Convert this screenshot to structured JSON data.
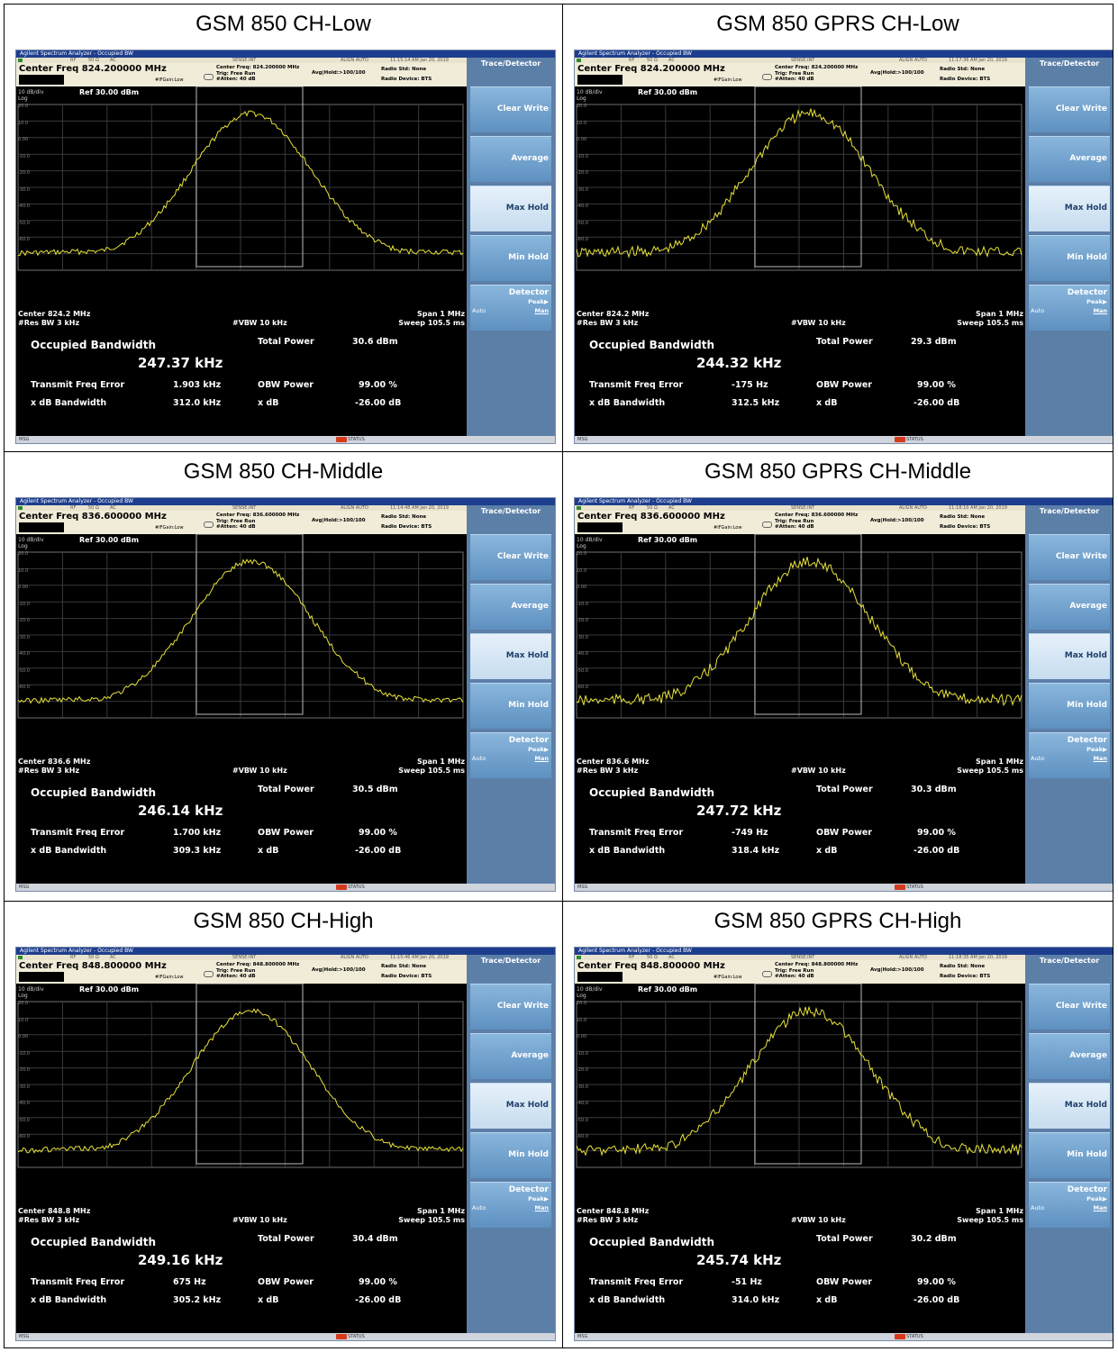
{
  "common": {
    "window_title": "Agilent Spectrum Analyzer - Occupied BW",
    "status_rf": "RF",
    "status_ohm": "50 Ω",
    "status_ac": "AC",
    "status_sense": "SENSE:INT",
    "status_align": "ALIGN AUTO",
    "trig": "Trig: Free Run",
    "atten": "#Atten: 40 dB",
    "avg_hold": "Avg|Hold:>100/100",
    "ifgain": "#IFGain:Low",
    "radio_std": "Radio Std: None",
    "radio_device": "Radio Device: BTS",
    "scale": "10 dB/div",
    "log": "Log",
    "ref": "Ref 30.00 dBm",
    "y_ticks": [
      "20.0",
      "10.0",
      "0.00",
      "-10.0",
      "-20.0",
      "-30.0",
      "-40.0",
      "-50.0",
      "-60.0"
    ],
    "res_bw": "#Res BW  3 kHz",
    "vbw": "#VBW  10 kHz",
    "span": "Span 1 MHz",
    "sweep": "Sweep  105.5 ms",
    "occupied_bw_label": "Occupied Bandwidth",
    "total_power_label": "Total Power",
    "tfe_label": "Transmit Freq Error",
    "xdbbw_label": "x dB Bandwidth",
    "obw_power_label": "OBW Power",
    "xdb_label": "x dB",
    "obw_power_value": "99.00 %",
    "xdb_value": "-26.00 dB",
    "side_title": "Trace/Detector",
    "side_buttons": [
      "Clear Write",
      "Average",
      "Max Hold",
      "Min Hold"
    ],
    "detector": "Detector",
    "peak": "Peak▶",
    "auto": "Auto",
    "man": "Man",
    "msg": "MSG",
    "status": "STATUS",
    "colors": {
      "trace": "#e8e23a",
      "titlebar": "#1d3e8e",
      "side": "#5c7fa8"
    }
  },
  "panels": [
    {
      "title": "GSM 850 CH-Low",
      "timestamp": "11:15:14 AM Jan 20, 2019",
      "center_freq_big": "Center Freq 824.200000 MHz",
      "center_freq_small": "Center Freq: 824.200000 MHz",
      "center": "Center  824.2 MHz",
      "obw": "247.37 kHz",
      "total_power": "30.6 dBm",
      "tfe": "1.903 kHz",
      "xdb_bw": "312.0 kHz"
    },
    {
      "title": "GSM 850 GPRS CH-Low",
      "timestamp": "11:17:36 AM Jan 20, 2019",
      "center_freq_big": "Center Freq 824.200000 MHz",
      "center_freq_small": "Center Freq: 824.200000 MHz",
      "center": "Center  824.2 MHz",
      "obw": "244.32 kHz",
      "total_power": "29.3 dBm",
      "tfe": "-175 Hz",
      "xdb_bw": "312.5 kHz"
    },
    {
      "title": "GSM 850 CH-Middle",
      "timestamp": "11:14:48 AM Jan 20, 2019",
      "center_freq_big": "Center Freq 836.600000 MHz",
      "center_freq_small": "Center Freq: 836.600000 MHz",
      "center": "Center  836.6 MHz",
      "obw": "246.14 kHz",
      "total_power": "30.5 dBm",
      "tfe": "1.700 kHz",
      "xdb_bw": "309.3 kHz"
    },
    {
      "title": "GSM 850 GPRS CH-Middle",
      "timestamp": "11:18:10 AM Jan 20, 2019",
      "center_freq_big": "Center Freq 836.600000 MHz",
      "center_freq_small": "Center Freq: 836.600000 MHz",
      "center": "Center  836.6 MHz",
      "obw": "247.72 kHz",
      "total_power": "30.3 dBm",
      "tfe": "-749 Hz",
      "xdb_bw": "318.4 kHz"
    },
    {
      "title": "GSM 850 CH-High",
      "timestamp": "11:15:46 AM Jan 20, 2019",
      "center_freq_big": "Center Freq 848.800000 MHz",
      "center_freq_small": "Center Freq: 848.800000 MHz",
      "center": "Center  848.8 MHz",
      "obw": "249.16 kHz",
      "total_power": "30.4 dBm",
      "tfe": "675 Hz",
      "xdb_bw": "305.2 kHz"
    },
    {
      "title": "GSM 850 GPRS CH-High",
      "timestamp": "11:18:35 AM Jan 20, 2019",
      "center_freq_big": "Center Freq 848.800000 MHz",
      "center_freq_small": "Center Freq: 848.800000 MHz",
      "center": "Center  848.8 MHz",
      "obw": "245.74 kHz",
      "total_power": "30.2 dBm",
      "tfe": "-51 Hz",
      "xdb_bw": "314.0 kHz"
    }
  ]
}
